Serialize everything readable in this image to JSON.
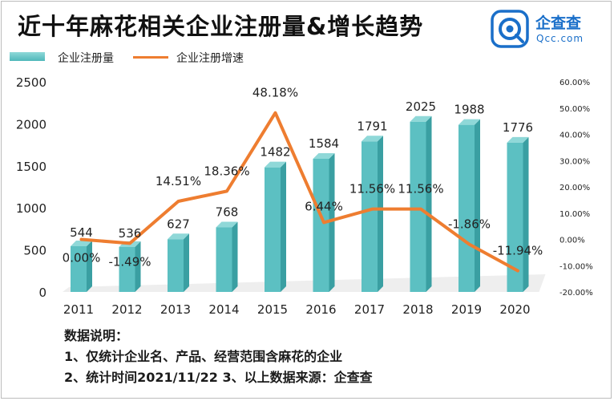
{
  "title": "近十年麻花相关企业注册量&增长趋势",
  "logo": {
    "name": "企查查",
    "sub": "Qcc.com"
  },
  "legend": {
    "bar": "企业注册量",
    "line": "企业注册增速"
  },
  "notes": {
    "heading": "数据说明：",
    "line1": "1、仅统计企业名、产品、经营范围含麻花的企业",
    "line2": "2、统计时间2021/11/22   3、以上数据来源：企查查"
  },
  "colors": {
    "bar_top": "#8fd8d8",
    "bar_face": "#5cc0c2",
    "bar_side": "#3a9fa2",
    "line": "#ee7d30",
    "logo": "#1a6fc9"
  },
  "chart_data": {
    "type": "bar",
    "categories": [
      "2011",
      "2012",
      "2013",
      "2014",
      "2015",
      "2016",
      "2017",
      "2018",
      "2019",
      "2020"
    ],
    "series": [
      {
        "name": "企业注册量",
        "type": "bar",
        "axis": "left",
        "values": [
          544,
          536,
          627,
          768,
          1482,
          1584,
          1791,
          2025,
          1988,
          1776
        ],
        "labels": [
          "544",
          "536",
          "627",
          "768",
          "1482",
          "1584",
          "1791",
          "2025",
          "1988",
          "1776"
        ]
      },
      {
        "name": "企业注册增速",
        "type": "line",
        "axis": "right",
        "unit": "%",
        "values": [
          0.0,
          -1.49,
          14.51,
          18.36,
          48.18,
          6.44,
          11.56,
          11.56,
          -1.86,
          -11.94
        ],
        "labels": [
          "0.00%",
          "-1.49%",
          "14.51%",
          "18.36%",
          "48.18%",
          "6.44%",
          "11.56%",
          "11.56%",
          "-1.86%",
          "-11.94%"
        ]
      }
    ],
    "y_left": {
      "min": 0,
      "max": 2500,
      "ticks": [
        "0",
        "500",
        "1000",
        "1500",
        "2000",
        "2500"
      ],
      "tick_values": [
        0,
        500,
        1000,
        1500,
        2000,
        2500
      ]
    },
    "y_right": {
      "min": -20,
      "max": 60,
      "ticks": [
        "-20.00%",
        "-10.00%",
        "0.00%",
        "10.00%",
        "20.00%",
        "30.00%",
        "40.00%",
        "50.00%",
        "60.00%"
      ],
      "tick_values": [
        -20,
        -10,
        0,
        10,
        20,
        30,
        40,
        50,
        60
      ]
    },
    "grid": false,
    "legend_position": "top-left"
  }
}
